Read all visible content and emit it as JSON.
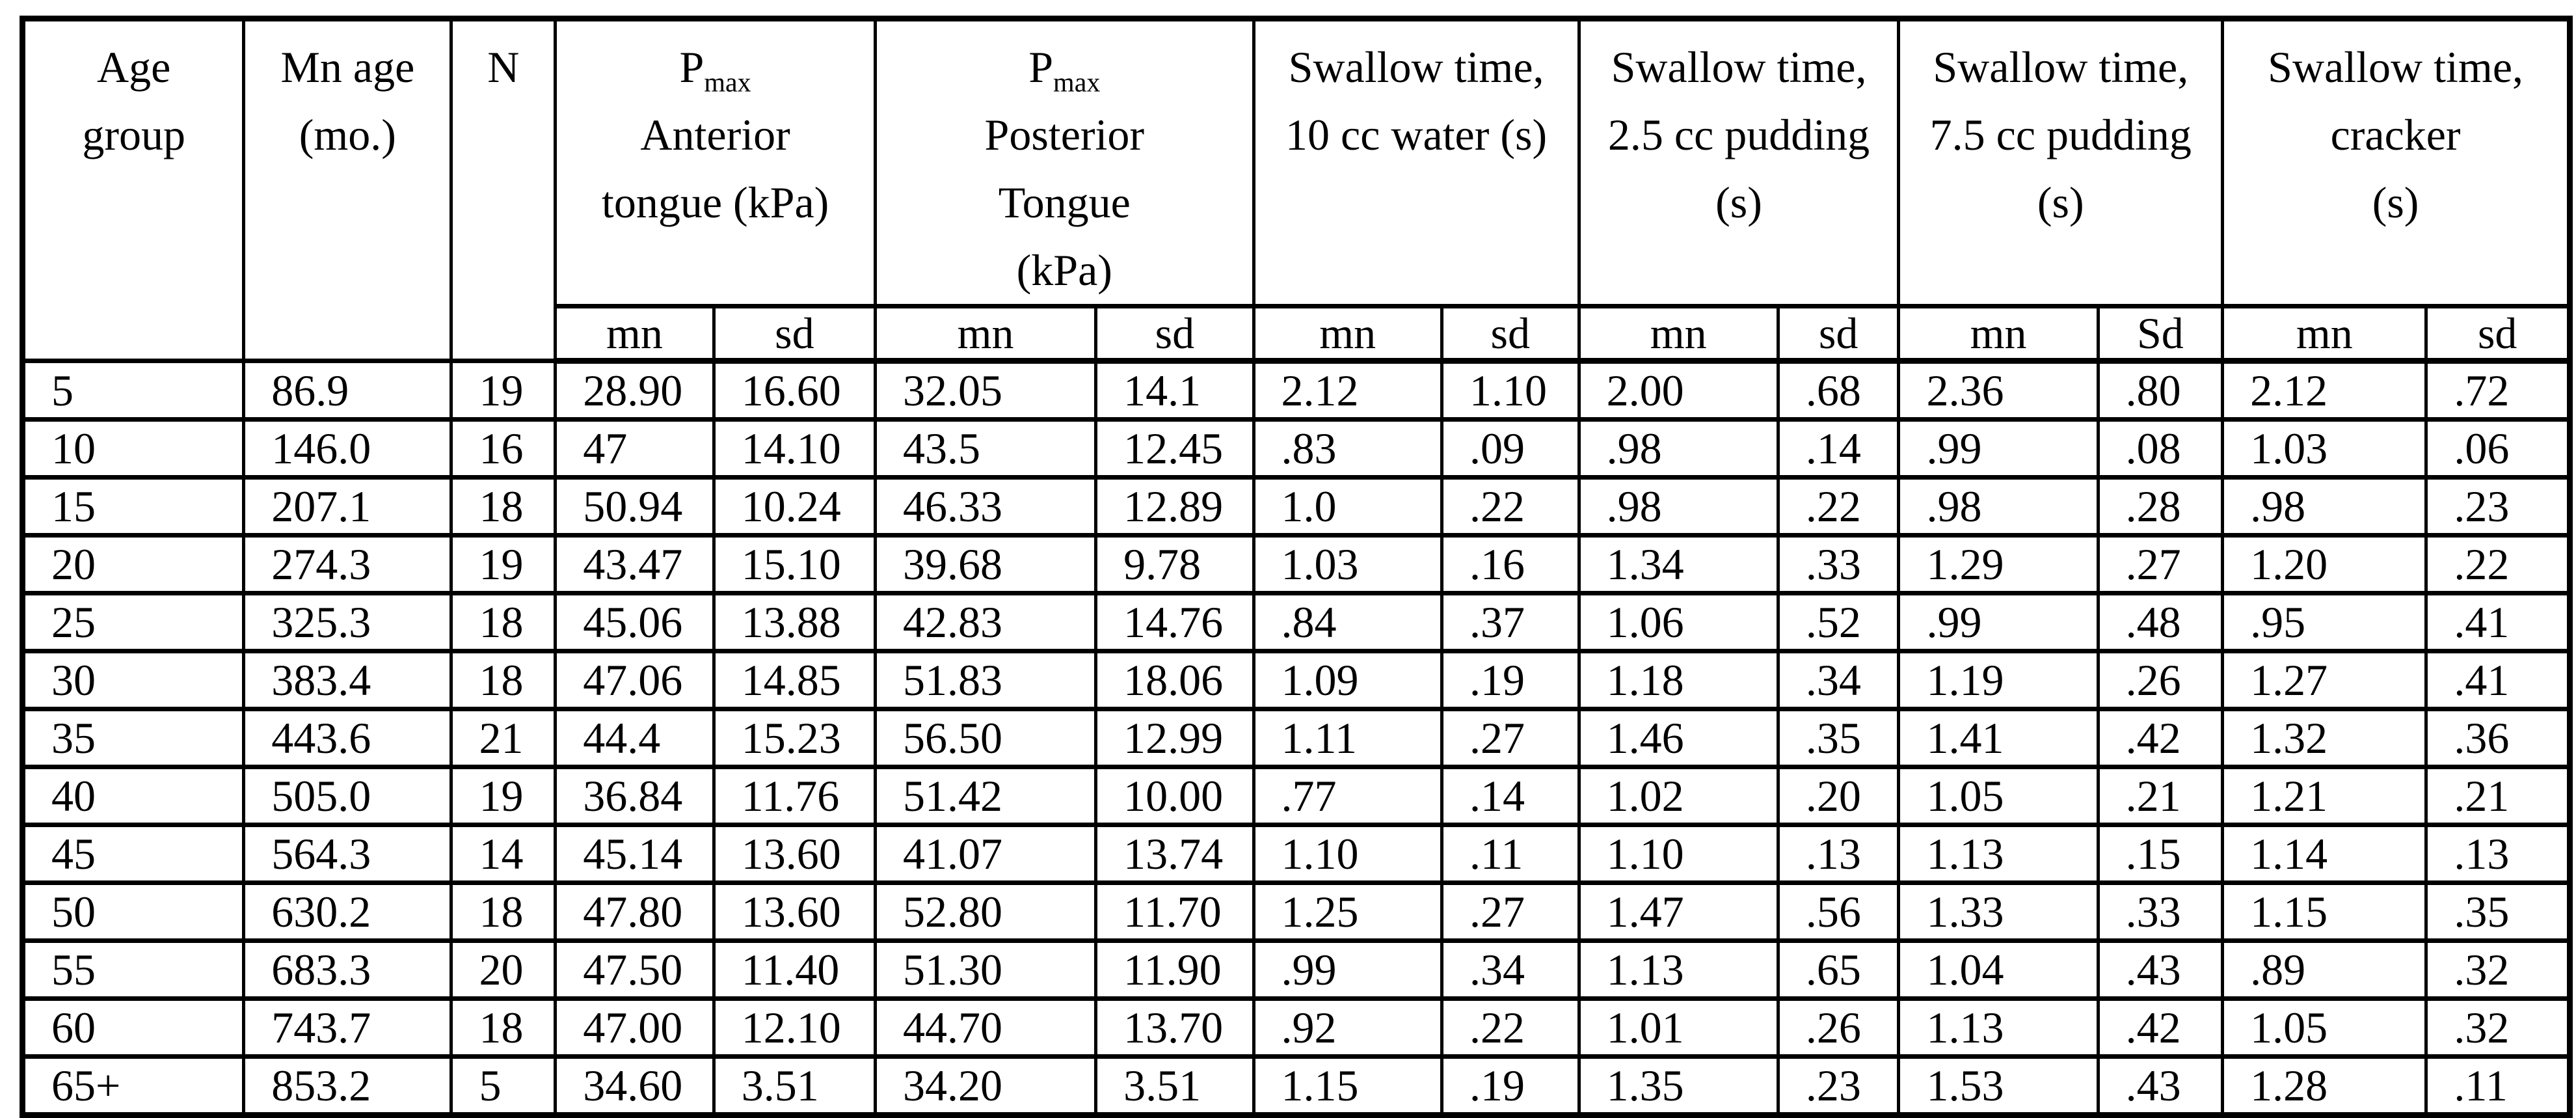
{
  "table": {
    "header": {
      "age_group_lines": [
        "Age",
        "group"
      ],
      "mn_age_lines": [
        "Mn age",
        "(mo.)"
      ],
      "n_label": "N",
      "groups": [
        {
          "name": "pmax-anterior-tongue",
          "pmax": "P",
          "pmax_sub": "max",
          "lines": [
            "Anterior",
            "tongue (kPa)"
          ],
          "sub": [
            "mn",
            "sd"
          ]
        },
        {
          "name": "pmax-posterior-tongue",
          "pmax": "P",
          "pmax_sub": "max",
          "lines": [
            "Posterior",
            "Tongue",
            "(kPa)"
          ],
          "sub": [
            "mn",
            "sd"
          ]
        },
        {
          "name": "swallow-time-10cc-water",
          "lines": [
            "Swallow time,",
            "10 cc water (s)"
          ],
          "sub": [
            "mn",
            "sd"
          ]
        },
        {
          "name": "swallow-time-2-5cc-pudding",
          "lines": [
            "Swallow time,",
            "2.5 cc pudding",
            "(s)"
          ],
          "sub": [
            "mn",
            "sd"
          ]
        },
        {
          "name": "swallow-time-7-5cc-pudding",
          "lines": [
            "Swallow time,",
            "7.5 cc pudding",
            "(s)"
          ],
          "sub": [
            "mn",
            "Sd"
          ]
        },
        {
          "name": "swallow-time-cracker",
          "lines": [
            "Swallow time,",
            "cracker",
            "(s)"
          ],
          "sub": [
            "mn",
            "sd"
          ]
        }
      ]
    },
    "rows": [
      [
        "5",
        "86.9",
        "19",
        "28.90",
        "16.60",
        "32.05",
        "14.1",
        "2.12",
        "1.10",
        "2.00",
        ".68",
        "2.36",
        ".80",
        "2.12",
        ".72"
      ],
      [
        "10",
        "146.0",
        "16",
        "47",
        "14.10",
        "43.5",
        "12.45",
        ".83",
        ".09",
        ".98",
        ".14",
        ".99",
        ".08",
        "1.03",
        ".06"
      ],
      [
        "15",
        "207.1",
        "18",
        "50.94",
        "10.24",
        "46.33",
        "12.89",
        "1.0",
        ".22",
        ".98",
        ".22",
        ".98",
        ".28",
        ".98",
        ".23"
      ],
      [
        "20",
        "274.3",
        "19",
        "43.47",
        "15.10",
        "39.68",
        "9.78",
        "1.03",
        ".16",
        "1.34",
        ".33",
        "1.29",
        ".27",
        "1.20",
        ".22"
      ],
      [
        "25",
        "325.3",
        "18",
        "45.06",
        "13.88",
        "42.83",
        "14.76",
        ".84",
        ".37",
        "1.06",
        ".52",
        ".99",
        ".48",
        ".95",
        ".41"
      ],
      [
        "30",
        "383.4",
        "18",
        "47.06",
        "14.85",
        "51.83",
        "18.06",
        "1.09",
        ".19",
        "1.18",
        ".34",
        "1.19",
        ".26",
        "1.27",
        ".41"
      ],
      [
        "35",
        "443.6",
        "21",
        "44.4",
        "15.23",
        "56.50",
        "12.99",
        "1.11",
        ".27",
        "1.46",
        ".35",
        "1.41",
        ".42",
        "1.32",
        ".36"
      ],
      [
        "40",
        "505.0",
        "19",
        "36.84",
        "11.76",
        "51.42",
        "10.00",
        ".77",
        ".14",
        "1.02",
        ".20",
        "1.05",
        ".21",
        "1.21",
        ".21"
      ],
      [
        "45",
        "564.3",
        "14",
        "45.14",
        "13.60",
        "41.07",
        "13.74",
        "1.10",
        ".11",
        "1.10",
        ".13",
        "1.13",
        ".15",
        "1.14",
        ".13"
      ],
      [
        "50",
        "630.2",
        "18",
        "47.80",
        "13.60",
        "52.80",
        "11.70",
        "1.25",
        ".27",
        "1.47",
        ".56",
        "1.33",
        ".33",
        "1.15",
        ".35"
      ],
      [
        "55",
        "683.3",
        "20",
        "47.50",
        "11.40",
        "51.30",
        "11.90",
        ".99",
        ".34",
        "1.13",
        ".65",
        "1.04",
        ".43",
        ".89",
        ".32"
      ],
      [
        "60",
        "743.7",
        "18",
        "47.00",
        "12.10",
        "44.70",
        "13.70",
        ".92",
        ".22",
        "1.01",
        ".26",
        "1.13",
        ".42",
        "1.05",
        ".32"
      ],
      [
        "65+",
        "853.2",
        "5",
        "34.60",
        "3.51",
        "34.20",
        "3.51",
        "1.15",
        ".19",
        "1.35",
        ".23",
        "1.53",
        ".43",
        "1.28",
        ".11"
      ]
    ]
  }
}
